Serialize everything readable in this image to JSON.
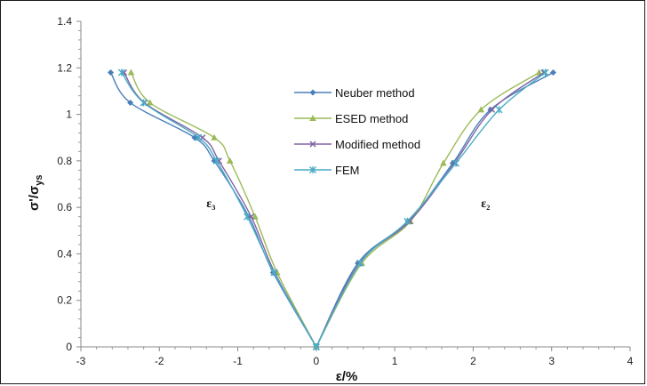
{
  "chart_data": {
    "type": "line",
    "title": "",
    "xlabel": "ε/%",
    "ylabel": "σ'/σys",
    "ylabel_main": "σ'/σ",
    "ylabel_sub": "ys",
    "xlim": [
      -3,
      4
    ],
    "ylim": [
      0,
      1.4
    ],
    "xticks": [
      -3,
      -2,
      -1,
      0,
      1,
      2,
      3,
      4
    ],
    "yticks": [
      0,
      0.2,
      0.4,
      0.6,
      0.8,
      1,
      1.2,
      1.4
    ],
    "xtick_labels": [
      "-3",
      "-2",
      "-1",
      "0",
      "1",
      "2",
      "3",
      "4"
    ],
    "ytick_labels": [
      "0",
      "0.2",
      "0.4",
      "0.6",
      "0.8",
      "1",
      "1.2",
      "1.4"
    ],
    "grid": false,
    "legend_position": "center",
    "annotations": [
      {
        "text": "ε₃",
        "x": -1.4,
        "y": 0.6
      },
      {
        "text": "ε₂",
        "x": 2.1,
        "y": 0.6
      }
    ],
    "series": [
      {
        "name": "Neuber method",
        "color": "#4a7ebb",
        "marker": "diamond",
        "left": [
          [
            -2.62,
            1.18
          ],
          [
            -2.37,
            1.05
          ],
          [
            -1.55,
            0.9
          ],
          [
            -1.3,
            0.8
          ],
          [
            -0.86,
            0.56
          ],
          [
            -0.55,
            0.32
          ],
          [
            0,
            0
          ]
        ],
        "right": [
          [
            0,
            0
          ],
          [
            0.53,
            0.36
          ],
          [
            1.17,
            0.54
          ],
          [
            1.74,
            0.79
          ],
          [
            2.22,
            1.02
          ],
          [
            3.02,
            1.18
          ]
        ]
      },
      {
        "name": "ESED method",
        "color": "#9bbb59",
        "marker": "triangle",
        "left": [
          [
            -2.36,
            1.18
          ],
          [
            -2.12,
            1.05
          ],
          [
            -1.3,
            0.9
          ],
          [
            -1.1,
            0.8
          ],
          [
            -0.78,
            0.56
          ],
          [
            -0.5,
            0.32
          ],
          [
            0,
            0
          ]
        ],
        "right": [
          [
            0,
            0
          ],
          [
            0.58,
            0.36
          ],
          [
            1.2,
            0.54
          ],
          [
            1.62,
            0.79
          ],
          [
            2.1,
            1.02
          ],
          [
            2.84,
            1.18
          ]
        ]
      },
      {
        "name": "Modified method",
        "color": "#8064a2",
        "marker": "x",
        "left": [
          [
            -2.45,
            1.18
          ],
          [
            -2.19,
            1.05
          ],
          [
            -1.45,
            0.9
          ],
          [
            -1.24,
            0.8
          ],
          [
            -0.83,
            0.56
          ],
          [
            -0.53,
            0.32
          ],
          [
            0,
            0
          ]
        ],
        "right": [
          [
            0,
            0
          ],
          [
            0.55,
            0.36
          ],
          [
            1.19,
            0.54
          ],
          [
            1.76,
            0.79
          ],
          [
            2.24,
            1.02
          ],
          [
            2.9,
            1.18
          ]
        ]
      },
      {
        "name": "FEM",
        "color": "#4bacc6",
        "marker": "star",
        "left": [
          [
            -2.48,
            1.18
          ],
          [
            -2.2,
            1.05
          ],
          [
            -1.5,
            0.9
          ],
          [
            -1.27,
            0.8
          ],
          [
            -0.88,
            0.56
          ],
          [
            -0.54,
            0.32
          ],
          [
            0,
            0
          ]
        ],
        "right": [
          [
            0,
            0
          ],
          [
            0.56,
            0.36
          ],
          [
            1.16,
            0.54
          ],
          [
            1.78,
            0.79
          ],
          [
            2.33,
            1.02
          ],
          [
            2.92,
            1.18
          ]
        ]
      }
    ]
  }
}
